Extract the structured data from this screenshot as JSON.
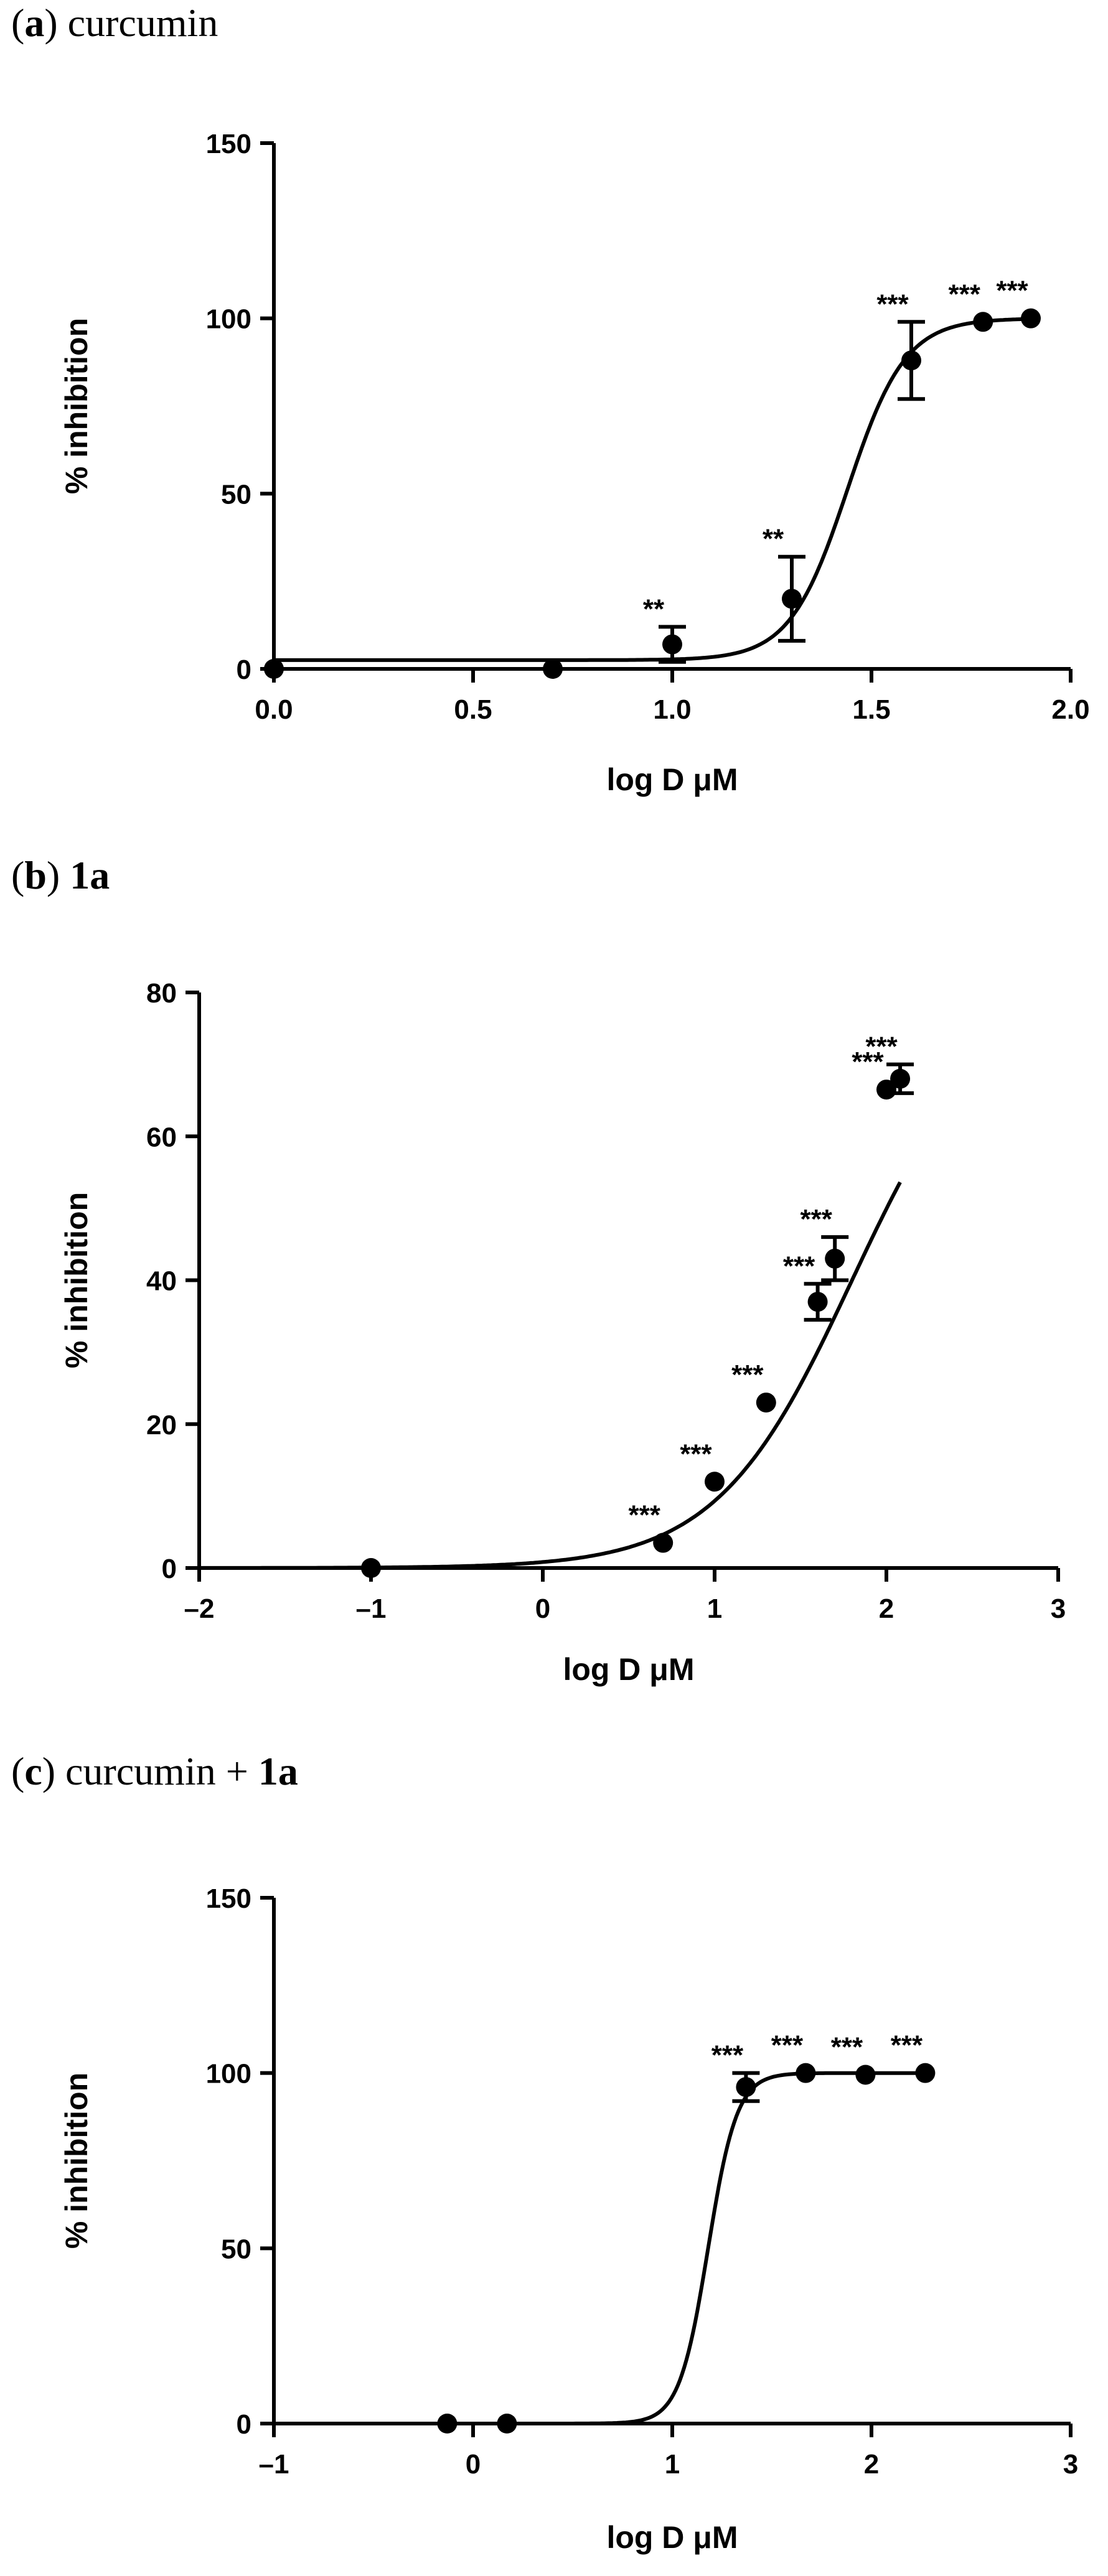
{
  "chart_data": [
    {
      "type": "scatter",
      "panel_label": "a",
      "title": "curcumin",
      "title_bold": "",
      "xlabel": "log D μM",
      "ylabel": "% inhibition",
      "xlim": [
        0,
        2
      ],
      "ylim": [
        0,
        150
      ],
      "xticks": [
        0,
        0.5,
        1,
        1.5,
        2
      ],
      "xtick_labels": [
        "0.0",
        "0.5",
        "1.0",
        "1.5",
        "2.0"
      ],
      "yticks": [
        0,
        50,
        100,
        150
      ],
      "ytick_labels": [
        "0",
        "50",
        "100",
        "150"
      ],
      "series": [
        {
          "x": [
            0,
            0.7,
            1.0,
            1.3,
            1.6,
            1.78,
            1.9
          ],
          "y": [
            0,
            0,
            7,
            20,
            88,
            99,
            100
          ],
          "err": [
            0,
            0,
            5,
            12,
            11,
            0,
            0
          ],
          "annotations": [
            "",
            "",
            "**",
            "**",
            "***",
            "***",
            "***"
          ]
        }
      ],
      "fit": {
        "bottom": 2.5,
        "top": 100,
        "logEC50": 1.44,
        "hill": 6
      }
    },
    {
      "type": "scatter",
      "panel_label": "b",
      "title": "",
      "title_bold": "1a",
      "xlabel": "log D μM",
      "ylabel": "% inhibition",
      "xlim": [
        -2,
        3
      ],
      "ylim": [
        0,
        80
      ],
      "xticks": [
        -2,
        -1,
        0,
        1,
        2,
        3
      ],
      "xtick_labels": [
        "–2",
        "–1",
        "0",
        "1",
        "2",
        "3"
      ],
      "yticks": [
        0,
        20,
        40,
        60,
        80
      ],
      "ytick_labels": [
        "0",
        "20",
        "40",
        "60",
        "80"
      ],
      "series": [
        {
          "x": [
            -1,
            0.7,
            1.0,
            1.3,
            1.6,
            1.7,
            2.0,
            2.08
          ],
          "y": [
            0,
            3.5,
            12,
            23,
            37,
            43,
            66.5,
            68
          ],
          "err": [
            0,
            0,
            0,
            0,
            2.5,
            3,
            0,
            2
          ],
          "annotations": [
            "",
            "***",
            "***",
            "***",
            "***",
            "***",
            "***",
            "***"
          ]
        }
      ],
      "fit": {
        "bottom": 0,
        "top": 80,
        "logEC50": 1.8,
        "hill": 1.1
      }
    },
    {
      "type": "scatter",
      "panel_label": "c",
      "title": "curcumin + ",
      "title_bold": "1a",
      "xlabel": "log D μM",
      "ylabel": "% inhibition",
      "xlim": [
        -1,
        3
      ],
      "ylim": [
        0,
        150
      ],
      "xticks": [
        -1,
        0,
        1,
        2,
        3
      ],
      "xtick_labels": [
        "–1",
        "0",
        "1",
        "2",
        "3"
      ],
      "yticks": [
        0,
        50,
        100,
        150
      ],
      "ytick_labels": [
        "0",
        "50",
        "100",
        "150"
      ],
      "series": [
        {
          "x": [
            -0.13,
            0.17,
            1.37,
            1.67,
            1.97,
            2.27
          ],
          "y": [
            0,
            0,
            96,
            100,
            99.5,
            100
          ],
          "err": [
            0,
            0,
            4,
            0,
            0,
            0
          ],
          "annotations": [
            "",
            "",
            "***",
            "***",
            "***",
            "***"
          ]
        }
      ],
      "fit": {
        "bottom": 0,
        "top": 100,
        "logEC50": 1.18,
        "hill": 6
      }
    }
  ]
}
